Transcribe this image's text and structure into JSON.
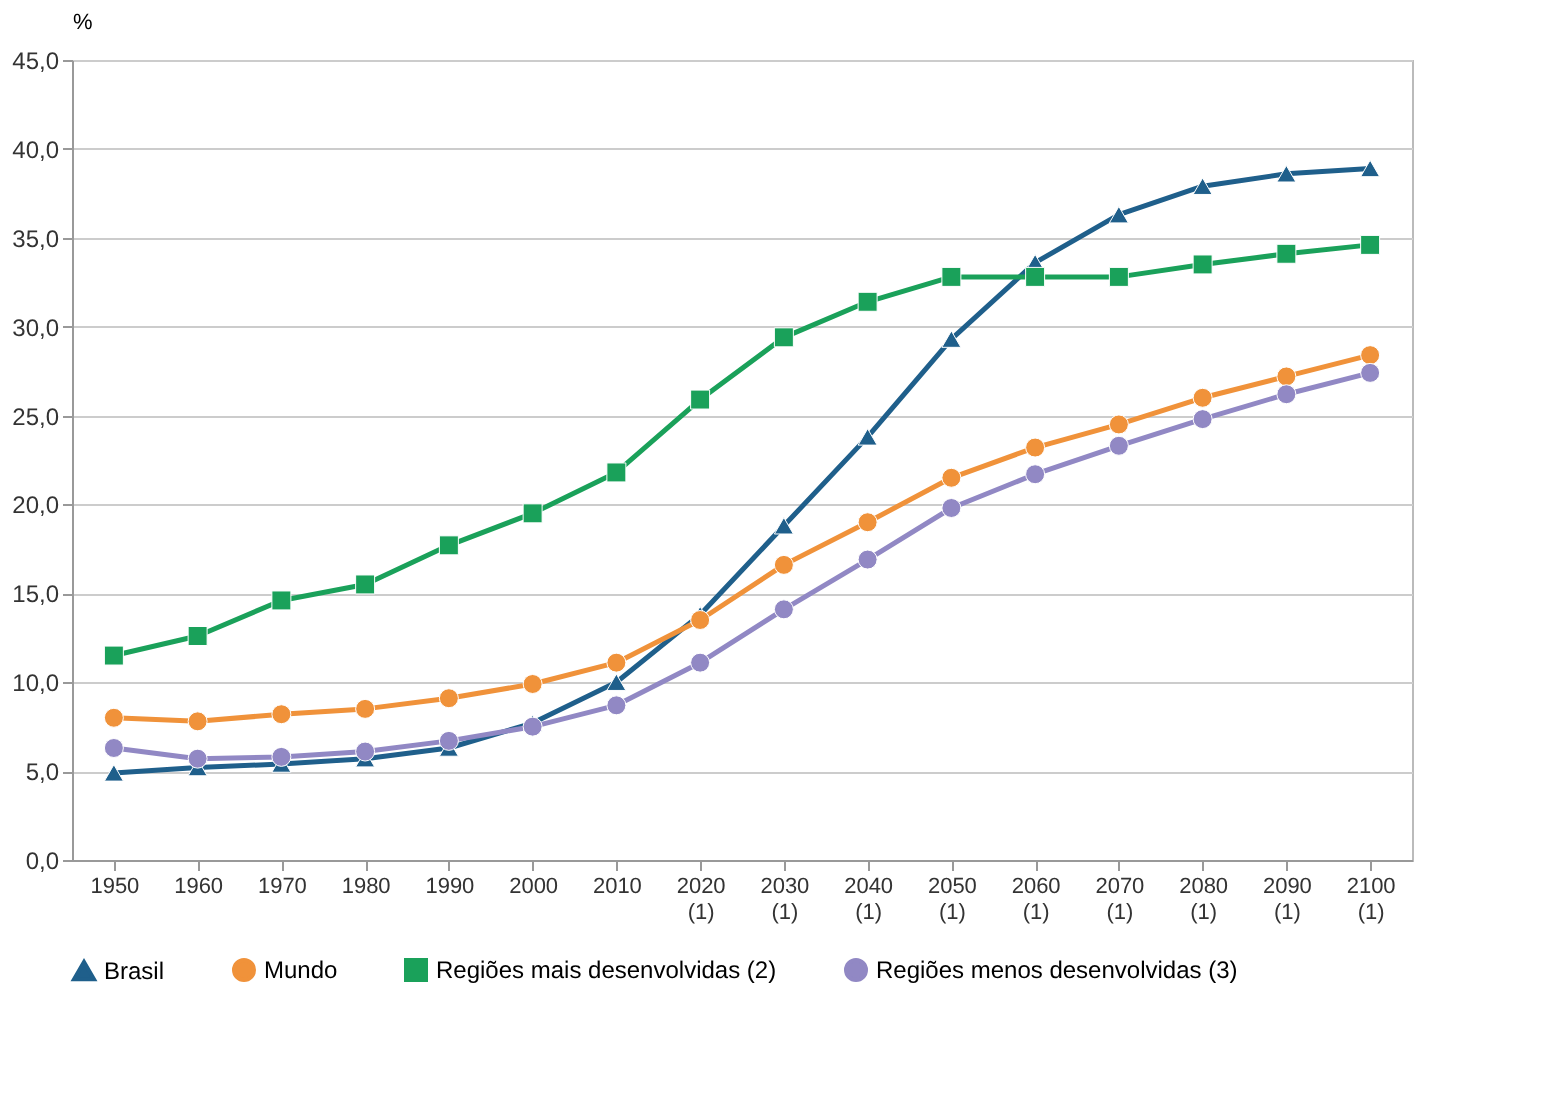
{
  "chart_data": {
    "type": "line",
    "ylabel": "%",
    "categories": [
      "1950",
      "1960",
      "1970",
      "1980",
      "1990",
      "2000",
      "2010",
      "2020 (1)",
      "2030 (1)",
      "2040 (1)",
      "2050 (1)",
      "2060 (1)",
      "2070 (1)",
      "2080 (1)",
      "2090 (1)",
      "2100 (1)"
    ],
    "series": [
      {
        "name": "Brasil",
        "color": "#1f5f8b",
        "marker": "triangle",
        "values": [
          4.9,
          5.2,
          5.4,
          5.7,
          6.3,
          7.7,
          10.0,
          13.8,
          18.8,
          23.8,
          29.3,
          33.6,
          36.3,
          37.9,
          38.6,
          38.9
        ]
      },
      {
        "name": "Mundo",
        "color": "#f0923a",
        "marker": "circle",
        "values": [
          8.0,
          7.8,
          8.2,
          8.5,
          9.1,
          9.9,
          11.1,
          13.5,
          16.6,
          19.0,
          21.5,
          23.2,
          24.5,
          26.0,
          27.2,
          28.4
        ]
      },
      {
        "name": "Regiões mais desenvolvidas (2)",
        "color": "#1aa15a",
        "marker": "square",
        "values": [
          11.5,
          12.6,
          14.6,
          15.5,
          17.7,
          19.5,
          21.8,
          25.9,
          29.4,
          31.4,
          32.8,
          32.8,
          32.8,
          33.5,
          34.1,
          34.6
        ]
      },
      {
        "name": "Regiões menos desenvolvidas (3)",
        "color": "#9188c4",
        "marker": "circle",
        "values": [
          6.3,
          5.7,
          5.8,
          6.1,
          6.7,
          7.5,
          8.7,
          11.1,
          14.1,
          16.9,
          19.8,
          21.7,
          23.3,
          24.8,
          26.2,
          27.4
        ]
      }
    ],
    "ylim": [
      0,
      45
    ],
    "yticks": [
      {
        "value": 0,
        "label": "0,0"
      },
      {
        "value": 5,
        "label": "5,0"
      },
      {
        "value": 10,
        "label": "10,0"
      },
      {
        "value": 15,
        "label": "15,0"
      },
      {
        "value": 20,
        "label": "20,0"
      },
      {
        "value": 25,
        "label": "25,0"
      },
      {
        "value": 30,
        "label": "30,0"
      },
      {
        "value": 35,
        "label": "35,0"
      },
      {
        "value": 40,
        "label": "40,0"
      },
      {
        "value": 45,
        "label": "45,0"
      }
    ],
    "grid": "y",
    "legend": "bottom",
    "line_style": "solid"
  }
}
